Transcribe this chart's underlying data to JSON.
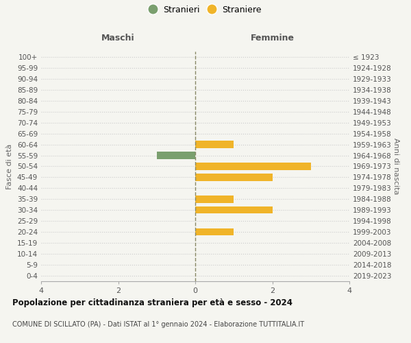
{
  "age_groups": [
    "100+",
    "95-99",
    "90-94",
    "85-89",
    "80-84",
    "75-79",
    "70-74",
    "65-69",
    "60-64",
    "55-59",
    "50-54",
    "45-49",
    "40-44",
    "35-39",
    "30-34",
    "25-29",
    "20-24",
    "15-19",
    "10-14",
    "5-9",
    "0-4"
  ],
  "birth_years": [
    "≤ 1923",
    "1924-1928",
    "1929-1933",
    "1934-1938",
    "1939-1943",
    "1944-1948",
    "1949-1953",
    "1954-1958",
    "1959-1963",
    "1964-1968",
    "1969-1973",
    "1974-1978",
    "1979-1983",
    "1984-1988",
    "1989-1993",
    "1994-1998",
    "1999-2003",
    "2004-2008",
    "2009-2013",
    "2014-2018",
    "2019-2023"
  ],
  "maschi": [
    0,
    0,
    0,
    0,
    0,
    0,
    0,
    0,
    0,
    1,
    0,
    0,
    0,
    0,
    0,
    0,
    0,
    0,
    0,
    0,
    0
  ],
  "femmine": [
    0,
    0,
    0,
    0,
    0,
    0,
    0,
    0,
    1,
    0,
    3,
    2,
    0,
    1,
    2,
    0,
    1,
    0,
    0,
    0,
    0
  ],
  "color_maschi": "#7a9f6e",
  "color_femmine": "#f0b429",
  "xlim": 4,
  "background_color": "#f5f5f0",
  "grid_color": "#cccccc",
  "center_line_color": "#888866",
  "bar_height": 0.65,
  "title": "Popolazione per cittadinanza straniera per età e sesso - 2024",
  "subtitle": "COMUNE DI SCILLATO (PA) - Dati ISTAT al 1° gennaio 2024 - Elaborazione TUTTITALIA.IT",
  "label_maschi": "Maschi",
  "label_femmine": "Femmine",
  "legend_stranieri": "Stranieri",
  "legend_straniere": "Straniere",
  "ylabel_left": "Fasce di età",
  "ylabel_right": "Anni di nascita"
}
